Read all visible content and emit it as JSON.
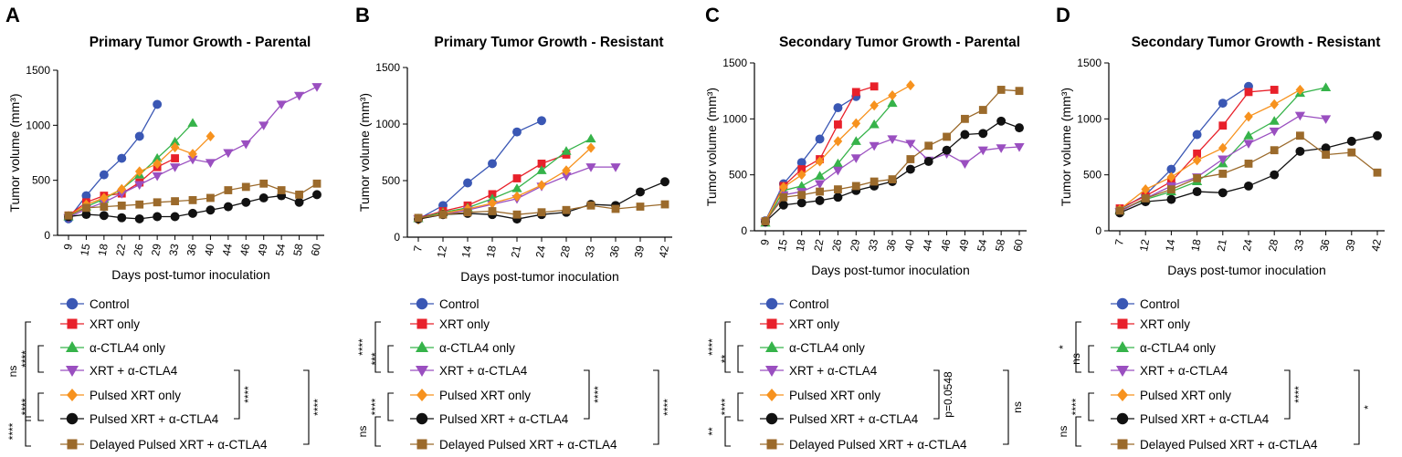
{
  "legend": [
    {
      "key": "control",
      "label": "Control",
      "color": "#3a57b4",
      "marker": "circle"
    },
    {
      "key": "xrt",
      "label": "XRT only",
      "color": "#e8202a",
      "marker": "square"
    },
    {
      "key": "ctla4",
      "label": "α-CTLA4 only",
      "color": "#36b34a",
      "marker": "triangle-up"
    },
    {
      "key": "xrt_ctla4",
      "label": "XRT + α-CTLA4",
      "color": "#9a4fc0",
      "marker": "triangle-down"
    },
    {
      "key": "pulsed",
      "label": "Pulsed XRT only",
      "color": "#f7921e",
      "marker": "diamond"
    },
    {
      "key": "pulsed_ctla4",
      "label": "Pulsed XRT + α-CTLA4",
      "color": "#111111",
      "marker": "circle"
    },
    {
      "key": "delayed",
      "label": "Delayed Pulsed XRT + α-CTLA4",
      "color": "#9b6a2b",
      "marker": "square"
    }
  ],
  "chart_data": [
    {
      "panel_label": "A",
      "type": "line",
      "title": "Primary Tumor Growth - Parental",
      "xlabel": "Days post-tumor inoculation",
      "ylabel": "Tumor volume (mm³)",
      "x": [
        "9",
        "15",
        "18",
        "22",
        "26",
        "29",
        "33",
        "36",
        "40",
        "44",
        "46",
        "49",
        "54",
        "58",
        "60"
      ],
      "ylim": [
        0,
        1500
      ],
      "yticks": [
        "0",
        "500",
        "1000",
        "1500"
      ],
      "series": {
        "control": [
          150,
          360,
          550,
          700,
          900,
          1190
        ],
        "xrt": [
          180,
          300,
          360,
          380,
          480,
          620,
          700
        ],
        "ctla4": [
          170,
          260,
          330,
          420,
          550,
          700,
          850,
          1020
        ],
        "xrt_ctla4": [
          160,
          240,
          300,
          380,
          460,
          540,
          620,
          690,
          660,
          750,
          830,
          1000,
          1190,
          1270,
          1350
        ],
        "pulsed": [
          175,
          280,
          340,
          420,
          580,
          650,
          800,
          740,
          900
        ],
        "pulsed_ctla4": [
          170,
          190,
          180,
          160,
          150,
          170,
          170,
          200,
          230,
          260,
          300,
          340,
          360,
          300,
          370
        ],
        "delayed": [
          180,
          250,
          260,
          270,
          280,
          300,
          310,
          320,
          340,
          410,
          440,
          470,
          410,
          370,
          470
        ]
      },
      "significance": [
        {
          "text": "ns",
          "side": "left"
        },
        {
          "text": "****",
          "side": "left"
        },
        {
          "text": "****",
          "side": "left"
        },
        {
          "text": "****",
          "side": "left"
        },
        {
          "text": "****",
          "side": "right"
        },
        {
          "text": "****",
          "side": "right"
        }
      ]
    },
    {
      "panel_label": "B",
      "type": "line",
      "title": "Primary Tumor Growth - Resistant",
      "xlabel": "Days post-tumor inoculation",
      "ylabel": "Tumor volume (mm³)",
      "x": [
        "7",
        "12",
        "14",
        "18",
        "21",
        "24",
        "28",
        "33",
        "36",
        "39",
        "42"
      ],
      "ylim": [
        0,
        1500
      ],
      "yticks": [
        "0",
        "500",
        "1000",
        "1500"
      ],
      "series": {
        "control": [
          160,
          280,
          480,
          650,
          930,
          1030
        ],
        "xrt": [
          170,
          230,
          280,
          380,
          520,
          650,
          730
        ],
        "ctla4": [
          165,
          220,
          260,
          340,
          430,
          590,
          760,
          870
        ],
        "xrt_ctla4": [
          160,
          200,
          240,
          290,
          340,
          450,
          540,
          620,
          620
        ],
        "pulsed": [
          155,
          210,
          250,
          300,
          360,
          460,
          590,
          790
        ],
        "pulsed_ctla4": [
          160,
          200,
          210,
          200,
          160,
          200,
          220,
          290,
          280,
          400,
          490
        ],
        "delayed": [
          170,
          200,
          220,
          230,
          200,
          220,
          240,
          280,
          250,
          270,
          290
        ]
      },
      "significance": [
        {
          "text": "****",
          "side": "left"
        },
        {
          "text": "***",
          "side": "left"
        },
        {
          "text": "****",
          "side": "left"
        },
        {
          "text": "ns",
          "side": "left"
        },
        {
          "text": "****",
          "side": "right"
        },
        {
          "text": "****",
          "side": "right"
        }
      ]
    },
    {
      "panel_label": "C",
      "type": "line",
      "title": "Secondary Tumor Growth - Parental",
      "xlabel": "Days post-tumor inoculation",
      "ylabel": "Tumor volume (mm³)",
      "x": [
        "9",
        "15",
        "18",
        "22",
        "26",
        "29",
        "33",
        "36",
        "40",
        "44",
        "46",
        "49",
        "54",
        "58",
        "60"
      ],
      "ylim": [
        0,
        1500
      ],
      "yticks": [
        "0",
        "500",
        "1000",
        "1500"
      ],
      "series": {
        "control": [
          90,
          420,
          610,
          820,
          1100,
          1200
        ],
        "xrt": [
          80,
          400,
          550,
          640,
          950,
          1240,
          1290
        ],
        "ctla4": [
          70,
          360,
          400,
          490,
          600,
          800,
          950,
          1140
        ],
        "xrt_ctla4": [
          75,
          320,
          350,
          420,
          540,
          650,
          760,
          820,
          780,
          630,
          690,
          600,
          720,
          740,
          750
        ],
        "pulsed": [
          85,
          390,
          500,
          620,
          800,
          960,
          1120,
          1210,
          1300
        ],
        "pulsed_ctla4": [
          80,
          230,
          250,
          270,
          300,
          360,
          400,
          440,
          550,
          620,
          720,
          860,
          870,
          980,
          920
        ],
        "delayed": [
          85,
          300,
          320,
          350,
          370,
          400,
          440,
          460,
          640,
          760,
          840,
          1000,
          1080,
          1260,
          1250
        ]
      },
      "significance": [
        {
          "text": "****",
          "side": "left"
        },
        {
          "text": "**",
          "side": "left"
        },
        {
          "text": "****",
          "side": "left"
        },
        {
          "text": "**",
          "side": "left"
        },
        {
          "text": "p=0.0548",
          "side": "right"
        },
        {
          "text": "ns",
          "side": "right"
        }
      ]
    },
    {
      "panel_label": "D",
      "type": "line",
      "title": "Secondary Tumor Growth - Resistant",
      "xlabel": "Days post-tumor inoculation",
      "ylabel": "Tumor volume (mm³)",
      "x": [
        "7",
        "12",
        "14",
        "18",
        "21",
        "24",
        "28",
        "33",
        "36",
        "39",
        "42"
      ],
      "ylim": [
        0,
        1500
      ],
      "yticks": [
        "0",
        "500",
        "1000",
        "1500"
      ],
      "series": {
        "control": [
          190,
          320,
          550,
          860,
          1140,
          1290
        ],
        "xrt": [
          200,
          310,
          440,
          690,
          940,
          1240,
          1260
        ],
        "ctla4": [
          180,
          280,
          350,
          440,
          600,
          850,
          980,
          1230,
          1280
        ],
        "xrt_ctla4": [
          170,
          290,
          400,
          480,
          640,
          780,
          890,
          1030,
          1000
        ],
        "pulsed": [
          190,
          370,
          480,
          630,
          740,
          1020,
          1130,
          1260
        ],
        "pulsed_ctla4": [
          160,
          260,
          280,
          350,
          340,
          400,
          500,
          710,
          740,
          800,
          850
        ],
        "delayed": [
          180,
          290,
          370,
          470,
          510,
          600,
          720,
          850,
          680,
          700,
          520
        ]
      },
      "significance": [
        {
          "text": "*",
          "side": "left"
        },
        {
          "text": "ns",
          "side": "left"
        },
        {
          "text": "****",
          "side": "left"
        },
        {
          "text": "ns",
          "side": "left"
        },
        {
          "text": "****",
          "side": "right"
        },
        {
          "text": "*",
          "side": "right"
        }
      ]
    }
  ]
}
